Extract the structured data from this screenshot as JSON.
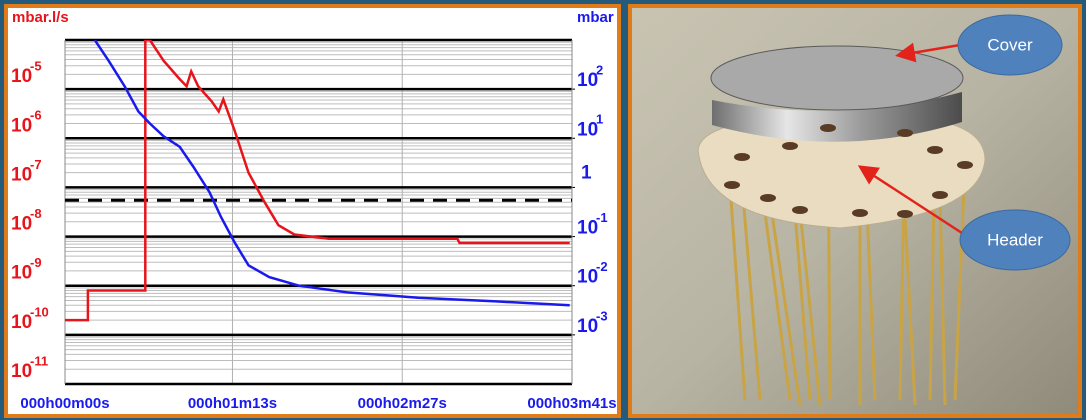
{
  "chart_data": {
    "type": "line",
    "ylabel": "mbar.l/s",
    "y2label": "mbar",
    "ylog": true,
    "y2log": true,
    "grid": true,
    "ylim": [
      1e-11,
      0.0001
    ],
    "yticks": [
      {
        "value": 1e-05,
        "label": [
          "10",
          "-5"
        ]
      },
      {
        "value": 1e-06,
        "label": [
          "10",
          "-6"
        ]
      },
      {
        "value": 1e-07,
        "label": [
          "10",
          "-7"
        ]
      },
      {
        "value": 1e-08,
        "label": [
          "10",
          "-8"
        ]
      },
      {
        "value": 1e-09,
        "label": [
          "10",
          "-9"
        ]
      },
      {
        "value": 1e-10,
        "label": [
          "10",
          "-10"
        ]
      },
      {
        "value": 1e-11,
        "label": [
          "10",
          "-11"
        ]
      }
    ],
    "y2lim": [
      0.0001,
      1000
    ],
    "y2ticks": [
      {
        "value": 100,
        "label": [
          "10",
          "2"
        ]
      },
      {
        "value": 10,
        "label": [
          "10",
          "1"
        ]
      },
      1,
      {
        "value": 0.1,
        "label": [
          "10",
          "-1"
        ]
      },
      {
        "value": 0.01,
        "label": [
          "10",
          "-2"
        ]
      },
      {
        "value": 0.001,
        "label": [
          "10",
          "-3"
        ]
      }
    ],
    "xlim": [
      0,
      221
    ],
    "xticks": [
      {
        "value": 0,
        "label": "000h00m00s"
      },
      {
        "value": 73,
        "label": "000h01m13s"
      },
      {
        "value": 147,
        "label": "000h02m27s"
      },
      {
        "value": 221,
        "label": "000h03m41s"
      }
    ],
    "threshold": 5.5e-08,
    "series": [
      {
        "color": "#e8141b",
        "x": [
          0,
          10,
          10,
          35,
          35,
          37,
          43,
          50,
          53,
          55,
          58,
          64,
          67,
          69,
          74,
          80,
          87,
          93,
          100,
          115,
          171,
          172,
          220
        ],
        "values": [
          2e-10,
          2e-10,
          8e-10,
          8e-10,
          0.0001,
          0.0001,
          3.8e-05,
          1.6e-05,
          1.15e-05,
          2.3e-05,
          1.15e-05,
          5.6e-06,
          3.5e-06,
          6.2e-06,
          1.4e-06,
          2e-07,
          5e-08,
          1.7e-08,
          1.1e-08,
          9e-09,
          9e-09,
          7.4e-09,
          7.4e-09
        ]
      },
      {
        "color": "#1a1aee",
        "axis": "y2",
        "x": [
          13,
          19,
          26,
          32,
          37,
          43,
          50,
          56,
          63,
          68,
          74,
          80,
          89,
          102,
          123,
          154,
          188,
          220
        ],
        "values": [
          1000,
          380,
          115,
          35,
          20,
          11,
          6.7,
          2.6,
          0.8,
          0.25,
          0.075,
          0.026,
          0.015,
          0.01,
          0.0073,
          0.0057,
          0.0048,
          0.004
        ]
      }
    ]
  },
  "photo": {
    "labels": [
      "Cover",
      "Header"
    ]
  }
}
